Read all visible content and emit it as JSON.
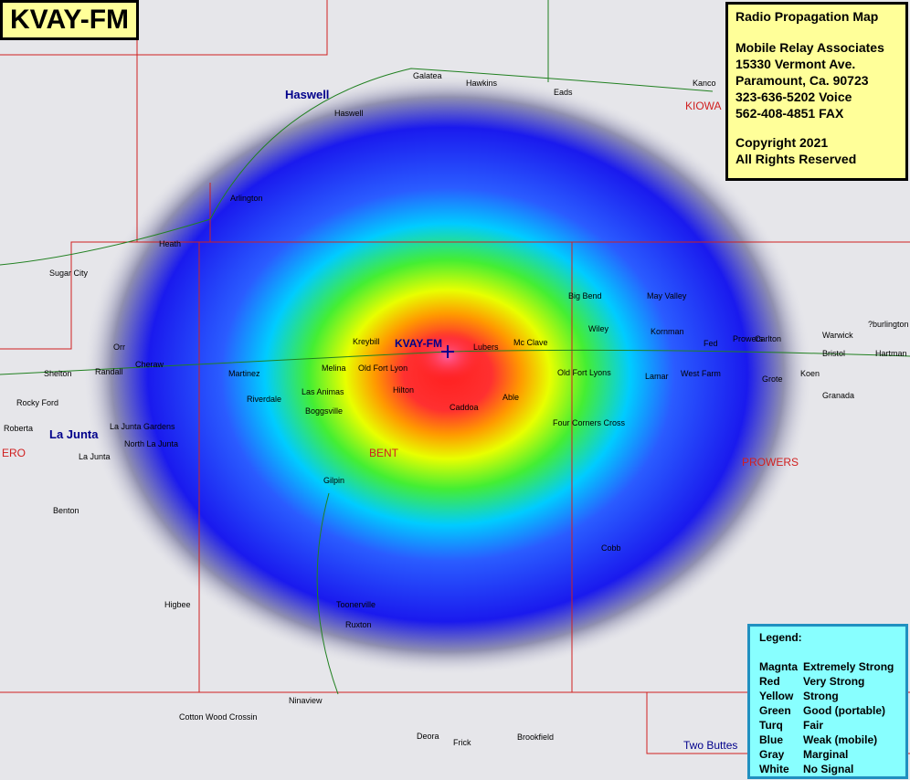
{
  "title": "KVAY-FM",
  "info": {
    "heading": "Radio Propagation Map",
    "lines": [
      "Mobile Relay Associates",
      "15330 Vermont Ave.",
      "Paramount, Ca. 90723",
      "323-636-5202 Voice",
      "562-408-4851 FAX"
    ],
    "copyright": [
      "Copyright 2021",
      "All Rights Reserved"
    ]
  },
  "legend": {
    "title": "Legend:",
    "rows": [
      [
        "Magnta",
        "Extremely Strong"
      ],
      [
        "Red",
        "Very Strong"
      ],
      [
        "Yellow",
        "Strong"
      ],
      [
        "Green",
        "Good (portable)"
      ],
      [
        "Turq",
        "Fair"
      ],
      [
        "Blue",
        "Weak (mobile)"
      ],
      [
        "Gray",
        "Marginal"
      ],
      [
        "White",
        "No Signal"
      ]
    ]
  },
  "station": "KVAY-FM",
  "places": [
    "Galatea",
    "Hawkins",
    "Eads",
    "Kanco",
    "KIOWA",
    "Haswell",
    "Haswell",
    "Arlington",
    "Heath",
    "Sugar City",
    "Orr",
    "Cheraw",
    "Shelton",
    "Randall",
    "Rocky Ford",
    "Roberta",
    "La Junta",
    "La Junta Gardens",
    "North La Junta",
    "La Junta",
    "ERO",
    "Benton",
    "Las Animas",
    "Riverdale",
    "Boggsville",
    "Melina",
    "Kreybill",
    "Old Fort Lyon",
    "Lubers",
    "Mc Clave",
    "Hilton",
    "Caddoa",
    "Able",
    "BENT",
    "Gilpin",
    "Big Bend",
    "May Valley",
    "Wiley",
    "Kornman",
    "Lamar",
    "Prowers",
    "Fed",
    "Old Fort Lyons",
    "West Farm",
    "Grote",
    "Koen",
    "Carlton",
    "Bristol",
    "Warwick",
    "Granada",
    "?burlington",
    "Hartman",
    "Four Corners Cross",
    "PROWERS",
    "Cobb",
    "Toonerville",
    "Ruxton",
    "Higbee",
    "Ninaview",
    "Cotton Wood Crossin",
    "Deora",
    "Frick",
    "Brookfield",
    "Two Buttes",
    "Martinez"
  ]
}
